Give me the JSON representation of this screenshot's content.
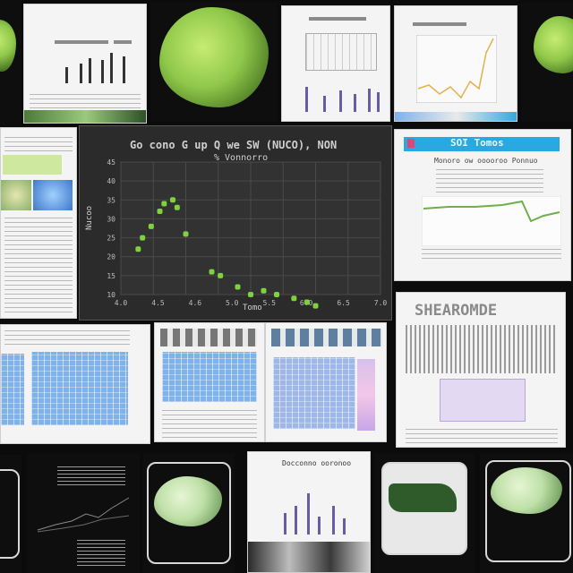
{
  "main_chart": {
    "title": "Go cono G up Q we SW (NUCO), NON",
    "subtitle": "% Vonnorro",
    "y_ticks": [
      "45",
      "40",
      "35",
      "30",
      "25",
      "20",
      "15",
      "10"
    ],
    "x_ticks": [
      "4.0",
      "4.5",
      "4.6",
      "5.0",
      "5.5",
      "6.0",
      "6.5",
      "7.0"
    ],
    "xlabel": "Tomo",
    "ylabel": "Nucoo",
    "point_color": "#7fd23c",
    "points": [
      [
        4.2,
        22
      ],
      [
        4.25,
        25
      ],
      [
        4.35,
        28
      ],
      [
        4.45,
        32
      ],
      [
        4.5,
        34
      ],
      [
        4.6,
        35
      ],
      [
        4.65,
        33
      ],
      [
        4.75,
        26
      ],
      [
        5.05,
        16
      ],
      [
        5.15,
        15
      ],
      [
        5.35,
        12
      ],
      [
        5.5,
        10
      ],
      [
        5.65,
        11
      ],
      [
        5.8,
        10
      ],
      [
        6.0,
        9
      ],
      [
        6.15,
        8
      ],
      [
        6.25,
        7
      ]
    ]
  },
  "right_doc": {
    "banner": "SOI Tomos",
    "heading": "Monoro ow ooooroo Ponnuo",
    "line_color": "#6db04a"
  },
  "table_doc": {
    "header": "SHEAROMDE"
  },
  "bottom_chart_doc": {
    "title": "Docconno ooronoo"
  },
  "colors": {
    "grid_blue": "#7fb2ea",
    "bar_purple": "#6a5aa8",
    "chart_orange": "#e6b04a",
    "banner_blue": "#2aa8e0"
  }
}
